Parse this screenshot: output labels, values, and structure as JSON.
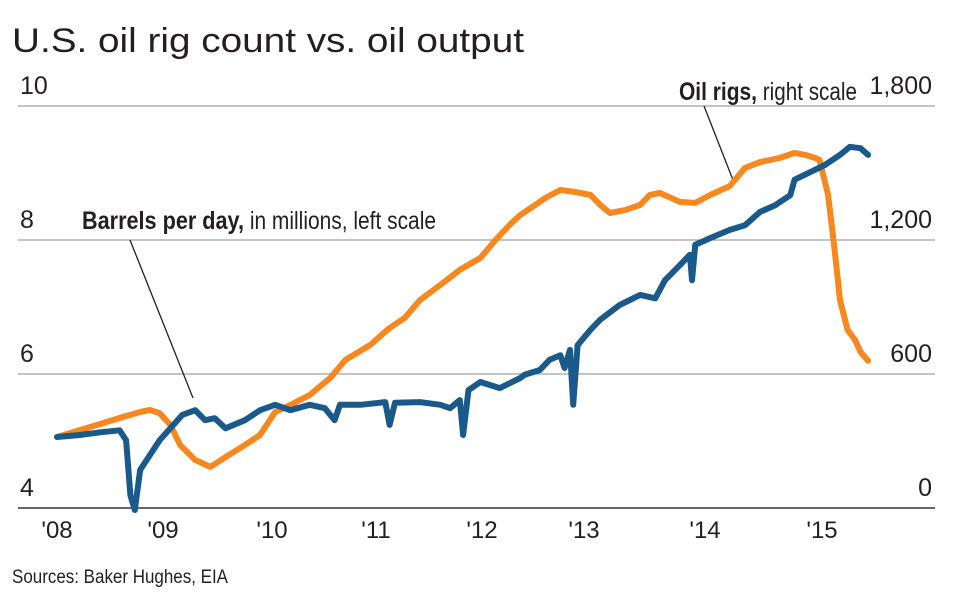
{
  "chart_data": {
    "type": "line",
    "title": "U.S. oil rig count vs. oil output",
    "source": "Sources: Baker Hughes, EIA",
    "x_tick_labels": [
      "'08",
      "'09",
      "'10",
      "'11",
      "'12",
      "'13",
      "'14",
      "'15"
    ],
    "x_tick_years": [
      2008,
      2009,
      2010,
      2011,
      2012,
      2013,
      2014,
      2015
    ],
    "xlim": [
      2008,
      2015.9
    ],
    "left_axis": {
      "ylim": [
        4,
        10
      ],
      "ticks": [
        4,
        6,
        8,
        10
      ],
      "tick_labels": [
        "4",
        "6",
        "8",
        "10"
      ]
    },
    "right_axis": {
      "ylim": [
        0,
        1800
      ],
      "ticks": [
        0,
        600,
        1200,
        1800
      ],
      "tick_labels": [
        "0",
        "600",
        "1,200",
        "1,800"
      ]
    },
    "grid": true,
    "series": [
      {
        "name": "Barrels per day",
        "label_bold": "Barrels per day,",
        "label_rest": " in millions, left scale",
        "axis": "left",
        "color": "#1a5a8a",
        "points": [
          [
            2008.0,
            5.06
          ],
          [
            2008.21,
            5.09
          ],
          [
            2008.4,
            5.13
          ],
          [
            2008.58,
            5.16
          ],
          [
            2008.64,
            5.01
          ],
          [
            2008.68,
            4.19
          ],
          [
            2008.72,
            3.97
          ],
          [
            2008.77,
            4.57
          ],
          [
            2008.86,
            4.79
          ],
          [
            2008.95,
            5.01
          ],
          [
            2009.05,
            5.19
          ],
          [
            2009.16,
            5.39
          ],
          [
            2009.28,
            5.46
          ],
          [
            2009.37,
            5.31
          ],
          [
            2009.46,
            5.34
          ],
          [
            2009.56,
            5.19
          ],
          [
            2009.74,
            5.31
          ],
          [
            2009.88,
            5.46
          ],
          [
            2010.02,
            5.54
          ],
          [
            2010.16,
            5.46
          ],
          [
            2010.34,
            5.54
          ],
          [
            2010.48,
            5.49
          ],
          [
            2010.57,
            5.31
          ],
          [
            2010.62,
            5.54
          ],
          [
            2010.81,
            5.54
          ],
          [
            2011.04,
            5.58
          ],
          [
            2011.08,
            5.24
          ],
          [
            2011.13,
            5.57
          ],
          [
            2011.36,
            5.58
          ],
          [
            2011.55,
            5.54
          ],
          [
            2011.64,
            5.49
          ],
          [
            2011.73,
            5.61
          ],
          [
            2011.76,
            5.09
          ],
          [
            2011.81,
            5.76
          ],
          [
            2011.92,
            5.88
          ],
          [
            2012.1,
            5.79
          ],
          [
            2012.29,
            5.94
          ],
          [
            2012.33,
            5.99
          ],
          [
            2012.47,
            6.06
          ],
          [
            2012.56,
            6.21
          ],
          [
            2012.66,
            6.28
          ],
          [
            2012.7,
            6.09
          ],
          [
            2012.75,
            6.36
          ],
          [
            2012.78,
            5.54
          ],
          [
            2012.82,
            6.43
          ],
          [
            2012.94,
            6.66
          ],
          [
            2013.03,
            6.81
          ],
          [
            2013.21,
            7.03
          ],
          [
            2013.4,
            7.18
          ],
          [
            2013.54,
            7.13
          ],
          [
            2013.63,
            7.4
          ],
          [
            2013.77,
            7.63
          ],
          [
            2013.86,
            7.78
          ],
          [
            2013.88,
            7.4
          ],
          [
            2013.91,
            7.93
          ],
          [
            2014.05,
            8.03
          ],
          [
            2014.23,
            8.15
          ],
          [
            2014.37,
            8.22
          ],
          [
            2014.51,
            8.42
          ],
          [
            2014.65,
            8.52
          ],
          [
            2014.79,
            8.67
          ],
          [
            2014.83,
            8.9
          ],
          [
            2014.97,
            9.01
          ],
          [
            2015.11,
            9.12
          ],
          [
            2015.25,
            9.27
          ],
          [
            2015.34,
            9.39
          ],
          [
            2015.44,
            9.37
          ],
          [
            2015.51,
            9.27
          ]
        ]
      },
      {
        "name": "Oil rigs",
        "label_bold": "Oil rigs,",
        "label_rest": " right scale",
        "axis": "right",
        "color": "#f7881f",
        "points": [
          [
            2008.0,
            318
          ],
          [
            2008.21,
            349
          ],
          [
            2008.4,
            376
          ],
          [
            2008.58,
            403
          ],
          [
            2008.77,
            430
          ],
          [
            2008.86,
            439
          ],
          [
            2008.95,
            425
          ],
          [
            2009.05,
            372
          ],
          [
            2009.14,
            282
          ],
          [
            2009.28,
            215
          ],
          [
            2009.42,
            184
          ],
          [
            2009.56,
            228
          ],
          [
            2009.74,
            282
          ],
          [
            2009.88,
            327
          ],
          [
            2010.02,
            430
          ],
          [
            2010.16,
            461
          ],
          [
            2010.34,
            506
          ],
          [
            2010.53,
            582
          ],
          [
            2010.67,
            663
          ],
          [
            2010.9,
            730
          ],
          [
            2011.08,
            806
          ],
          [
            2011.22,
            851
          ],
          [
            2011.36,
            931
          ],
          [
            2011.55,
            999
          ],
          [
            2011.73,
            1066
          ],
          [
            2011.92,
            1120
          ],
          [
            2012.06,
            1200
          ],
          [
            2012.19,
            1267
          ],
          [
            2012.29,
            1312
          ],
          [
            2012.43,
            1357
          ],
          [
            2012.52,
            1388
          ],
          [
            2012.66,
            1424
          ],
          [
            2012.8,
            1415
          ],
          [
            2012.94,
            1402
          ],
          [
            2013.03,
            1357
          ],
          [
            2013.12,
            1321
          ],
          [
            2013.26,
            1334
          ],
          [
            2013.4,
            1357
          ],
          [
            2013.49,
            1402
          ],
          [
            2013.58,
            1411
          ],
          [
            2013.77,
            1370
          ],
          [
            2013.91,
            1366
          ],
          [
            2014.05,
            1402
          ],
          [
            2014.23,
            1442
          ],
          [
            2014.37,
            1523
          ],
          [
            2014.51,
            1549
          ],
          [
            2014.69,
            1567
          ],
          [
            2014.83,
            1590
          ],
          [
            2014.93,
            1581
          ],
          [
            2015.02,
            1567
          ],
          [
            2015.06,
            1558
          ],
          [
            2015.14,
            1402
          ],
          [
            2015.2,
            1155
          ],
          [
            2015.25,
            931
          ],
          [
            2015.32,
            797
          ],
          [
            2015.39,
            752
          ],
          [
            2015.44,
            699
          ],
          [
            2015.51,
            659
          ]
        ]
      }
    ]
  }
}
